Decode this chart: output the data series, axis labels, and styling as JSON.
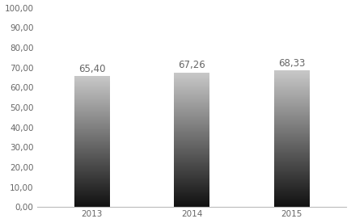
{
  "categories": [
    "2013",
    "2014",
    "2015"
  ],
  "values": [
    65.4,
    67.26,
    68.33
  ],
  "labels": [
    "65,40",
    "67,26",
    "68,33"
  ],
  "ylim": [
    0,
    100
  ],
  "yticks": [
    0,
    10,
    20,
    30,
    40,
    50,
    60,
    70,
    80,
    90,
    100
  ],
  "ytick_labels": [
    "0,00",
    "10,00",
    "20,00",
    "30,00",
    "40,00",
    "50,00",
    "60,00",
    "70,00",
    "80,00",
    "90,00",
    "100,00"
  ],
  "bar_width": 0.35,
  "background_color": "#ffffff",
  "gradient_top": "#c8c8c8",
  "gradient_bottom": "#111111",
  "label_fontsize": 8.5,
  "tick_fontsize": 7.5,
  "label_color": "#666666",
  "spine_color": "#bbbbbb"
}
